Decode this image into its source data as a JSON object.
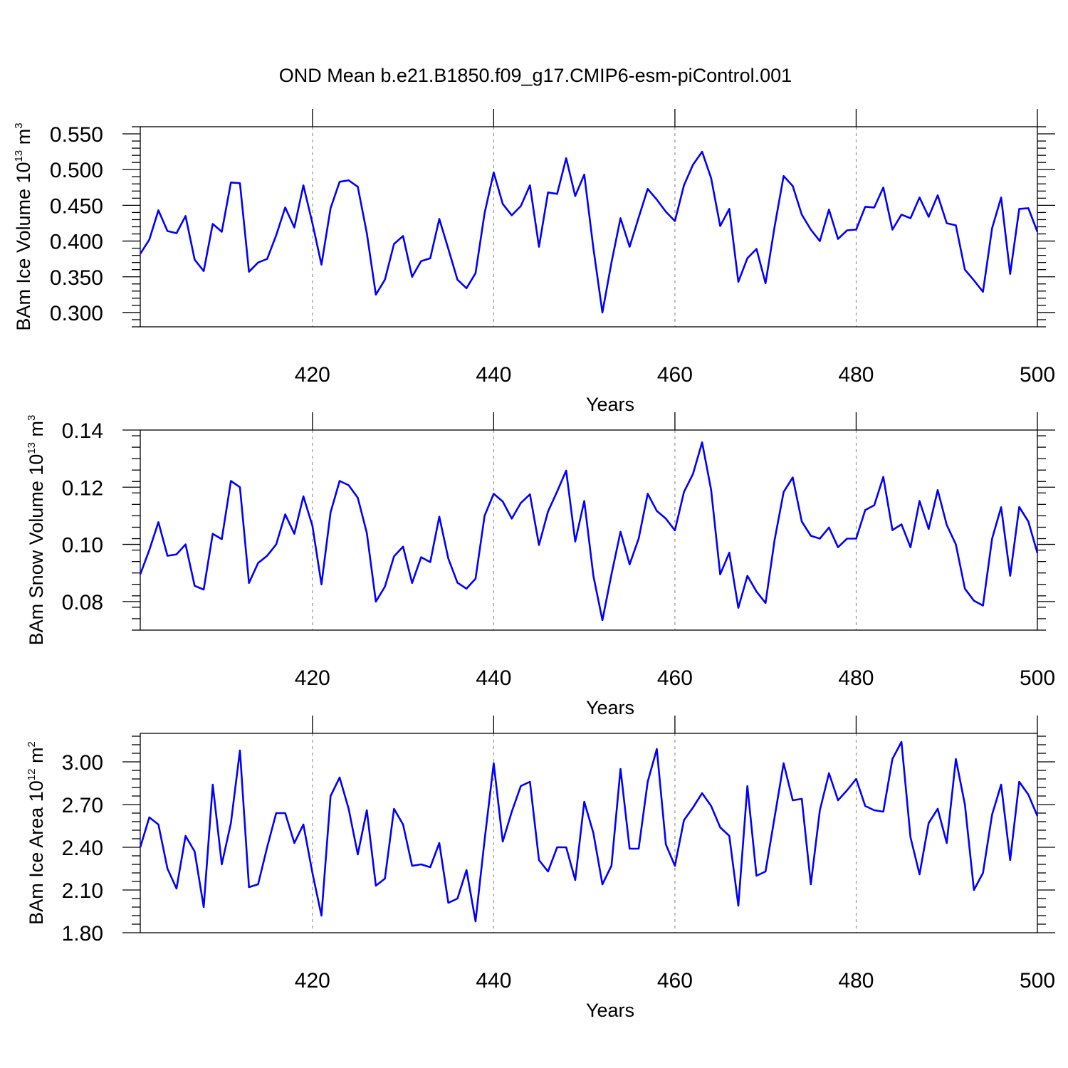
{
  "title": "OND Mean b.e21.B1850.f09_g17.CMIP6-esm-piControl.001",
  "line_color": "#0000ff",
  "chart_data": [
    {
      "type": "line",
      "xlabel": "Years",
      "ylabel": {
        "main": "BAm Ice Volume 10",
        "exp": "13",
        "unit": " m",
        "unit_exp": "3"
      },
      "xlim": [
        401,
        500
      ],
      "ylim": [
        0.28,
        0.56
      ],
      "xticks": [
        420,
        440,
        460,
        480,
        500
      ],
      "xtick_labels": [
        "420",
        "440",
        "460",
        "480",
        "500"
      ],
      "yticks": [
        0.3,
        0.35,
        0.4,
        0.45,
        0.5,
        0.55
      ],
      "ytick_labels": [
        "0.300",
        "0.350",
        "0.400",
        "0.450",
        "0.500",
        "0.550"
      ],
      "grid": "vertical dashed at major x ticks",
      "x": [
        401,
        402,
        403,
        404,
        405,
        406,
        407,
        408,
        409,
        410,
        411,
        412,
        413,
        414,
        415,
        416,
        417,
        418,
        419,
        420,
        421,
        422,
        423,
        424,
        425,
        426,
        427,
        428,
        429,
        430,
        431,
        432,
        433,
        434,
        435,
        436,
        437,
        438,
        439,
        440,
        441,
        442,
        443,
        444,
        445,
        446,
        447,
        448,
        449,
        450,
        451,
        452,
        453,
        454,
        455,
        456,
        457,
        458,
        459,
        460,
        461,
        462,
        463,
        464,
        465,
        466,
        467,
        468,
        469,
        470,
        471,
        472,
        473,
        474,
        475,
        476,
        477,
        478,
        479,
        480,
        481,
        482,
        483,
        484,
        485,
        486,
        487,
        488,
        489,
        490,
        491,
        492,
        493,
        494,
        495,
        496,
        497,
        498,
        499,
        500
      ],
      "y": [
        0.382,
        0.402,
        0.443,
        0.414,
        0.411,
        0.435,
        0.374,
        0.358,
        0.424,
        0.413,
        0.482,
        0.481,
        0.357,
        0.37,
        0.375,
        0.408,
        0.447,
        0.419,
        0.478,
        0.425,
        0.367,
        0.446,
        0.483,
        0.485,
        0.476,
        0.411,
        0.325,
        0.346,
        0.396,
        0.407,
        0.35,
        0.372,
        0.376,
        0.431,
        0.389,
        0.346,
        0.334,
        0.355,
        0.439,
        0.496,
        0.452,
        0.436,
        0.449,
        0.478,
        0.392,
        0.468,
        0.466,
        0.516,
        0.463,
        0.493,
        0.39,
        0.3,
        0.37,
        0.432,
        0.392,
        0.433,
        0.473,
        0.458,
        0.441,
        0.428,
        0.478,
        0.507,
        0.525,
        0.488,
        0.421,
        0.445,
        0.343,
        0.376,
        0.389,
        0.341,
        0.42,
        0.491,
        0.477,
        0.437,
        0.416,
        0.4,
        0.444,
        0.403,
        0.415,
        0.416,
        0.448,
        0.447,
        0.475,
        0.416,
        0.437,
        0.432,
        0.461,
        0.434,
        0.464,
        0.425,
        0.422,
        0.36,
        0.345,
        0.329,
        0.418,
        0.461,
        0.354,
        0.445,
        0.446,
        0.413
      ]
    },
    {
      "type": "line",
      "xlabel": "Years",
      "ylabel": {
        "main": "BAm Snow Volume 10",
        "exp": "13",
        "unit": " m",
        "unit_exp": "3"
      },
      "xlim": [
        401,
        500
      ],
      "ylim": [
        0.07,
        0.14
      ],
      "xticks": [
        420,
        440,
        460,
        480,
        500
      ],
      "xtick_labels": [
        "420",
        "440",
        "460",
        "480",
        "500"
      ],
      "yticks": [
        0.08,
        0.1,
        0.12,
        0.14
      ],
      "ytick_labels": [
        "0.08",
        "0.10",
        "0.12",
        "0.14"
      ],
      "grid": "vertical dashed at major x ticks",
      "x": [
        401,
        402,
        403,
        404,
        405,
        406,
        407,
        408,
        409,
        410,
        411,
        412,
        413,
        414,
        415,
        416,
        417,
        418,
        419,
        420,
        421,
        422,
        423,
        424,
        425,
        426,
        427,
        428,
        429,
        430,
        431,
        432,
        433,
        434,
        435,
        436,
        437,
        438,
        439,
        440,
        441,
        442,
        443,
        444,
        445,
        446,
        447,
        448,
        449,
        450,
        451,
        452,
        453,
        454,
        455,
        456,
        457,
        458,
        459,
        460,
        461,
        462,
        463,
        464,
        465,
        466,
        467,
        468,
        469,
        470,
        471,
        472,
        473,
        474,
        475,
        476,
        477,
        478,
        479,
        480,
        481,
        482,
        483,
        484,
        485,
        486,
        487,
        488,
        489,
        490,
        491,
        492,
        493,
        494,
        495,
        496,
        497,
        498,
        499,
        500
      ],
      "y": [
        0.0895,
        0.098,
        0.1078,
        0.096,
        0.0965,
        0.1,
        0.0855,
        0.0842,
        0.1037,
        0.1018,
        0.1222,
        0.12,
        0.0865,
        0.0935,
        0.096,
        0.1,
        0.1105,
        0.1037,
        0.1168,
        0.1065,
        0.086,
        0.1112,
        0.1222,
        0.1207,
        0.1163,
        0.104,
        0.08,
        0.0852,
        0.0958,
        0.0992,
        0.0865,
        0.0955,
        0.0938,
        0.1097,
        0.095,
        0.0866,
        0.0845,
        0.088,
        0.11,
        0.1177,
        0.115,
        0.109,
        0.1145,
        0.1175,
        0.0998,
        0.1115,
        0.1185,
        0.1258,
        0.101,
        0.1152,
        0.089,
        0.0735,
        0.0895,
        0.1044,
        0.093,
        0.102,
        0.1177,
        0.1117,
        0.109,
        0.1049,
        0.1183,
        0.1247,
        0.1357,
        0.119,
        0.0895,
        0.0971,
        0.0778,
        0.089,
        0.0835,
        0.0795,
        0.1015,
        0.1183,
        0.1234,
        0.108,
        0.103,
        0.102,
        0.1059,
        0.099,
        0.102,
        0.102,
        0.112,
        0.1137,
        0.1236,
        0.105,
        0.107,
        0.099,
        0.1152,
        0.1054,
        0.119,
        0.1068,
        0.1,
        0.0845,
        0.0803,
        0.0786,
        0.102,
        0.113,
        0.089,
        0.1131,
        0.108,
        0.097
      ]
    },
    {
      "type": "line",
      "xlabel": "Years",
      "ylabel": {
        "main": "BAm Ice Area 10",
        "exp": "12",
        "unit": " m",
        "unit_exp": "2"
      },
      "xlim": [
        401,
        500
      ],
      "ylim": [
        1.8,
        3.2
      ],
      "xticks": [
        420,
        440,
        460,
        480,
        500
      ],
      "xtick_labels": [
        "420",
        "440",
        "460",
        "480",
        "500"
      ],
      "yticks": [
        1.8,
        2.1,
        2.4,
        2.7,
        3.0
      ],
      "ytick_labels": [
        "1.80",
        "2.10",
        "2.40",
        "2.70",
        "3.00"
      ],
      "grid": "vertical dashed at major x ticks",
      "x": [
        401,
        402,
        403,
        404,
        405,
        406,
        407,
        408,
        409,
        410,
        411,
        412,
        413,
        414,
        415,
        416,
        417,
        418,
        419,
        420,
        421,
        422,
        423,
        424,
        425,
        426,
        427,
        428,
        429,
        430,
        431,
        432,
        433,
        434,
        435,
        436,
        437,
        438,
        439,
        440,
        441,
        442,
        443,
        444,
        445,
        446,
        447,
        448,
        449,
        450,
        451,
        452,
        453,
        454,
        455,
        456,
        457,
        458,
        459,
        460,
        461,
        462,
        463,
        464,
        465,
        466,
        467,
        468,
        469,
        470,
        471,
        472,
        473,
        474,
        475,
        476,
        477,
        478,
        479,
        480,
        481,
        482,
        483,
        484,
        485,
        486,
        487,
        488,
        489,
        490,
        491,
        492,
        493,
        494,
        495,
        496,
        497,
        498,
        499,
        500
      ],
      "y": [
        2.4,
        2.61,
        2.56,
        2.25,
        2.11,
        2.48,
        2.37,
        1.98,
        2.84,
        2.28,
        2.57,
        3.08,
        2.12,
        2.14,
        2.4,
        2.64,
        2.64,
        2.43,
        2.56,
        2.22,
        1.92,
        2.76,
        2.89,
        2.67,
        2.35,
        2.66,
        2.13,
        2.18,
        2.67,
        2.56,
        2.27,
        2.28,
        2.26,
        2.43,
        2.01,
        2.04,
        2.24,
        1.88,
        2.45,
        2.99,
        2.44,
        2.65,
        2.83,
        2.86,
        2.31,
        2.23,
        2.4,
        2.4,
        2.17,
        2.72,
        2.5,
        2.14,
        2.27,
        2.95,
        2.39,
        2.39,
        2.86,
        3.09,
        2.42,
        2.27,
        2.59,
        2.68,
        2.78,
        2.69,
        2.54,
        2.48,
        1.99,
        2.83,
        2.2,
        2.23,
        2.61,
        2.99,
        2.73,
        2.74,
        2.14,
        2.66,
        2.92,
        2.73,
        2.8,
        2.88,
        2.69,
        2.66,
        2.65,
        3.02,
        3.14,
        2.47,
        2.21,
        2.57,
        2.67,
        2.43,
        3.02,
        2.7,
        2.1,
        2.22,
        2.63,
        2.84,
        2.31,
        2.86,
        2.77,
        2.62
      ]
    }
  ]
}
